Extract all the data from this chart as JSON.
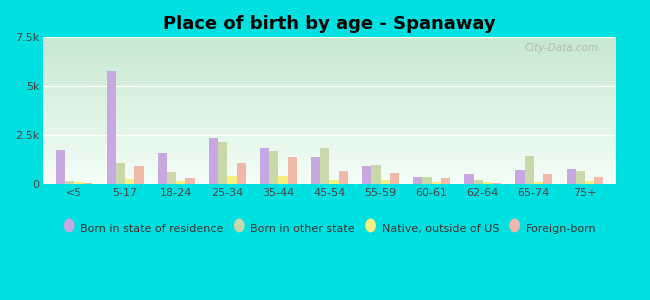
{
  "title": "Place of birth by age - Spanaway",
  "categories": [
    "<5",
    "5-17",
    "18-24",
    "25-34",
    "35-44",
    "45-54",
    "55-59",
    "60-61",
    "62-64",
    "65-74",
    "75+"
  ],
  "series": {
    "Born in state of residence": [
      1700,
      5750,
      1550,
      2350,
      1800,
      1350,
      900,
      350,
      500,
      700,
      750
    ],
    "Born in other state": [
      150,
      1050,
      600,
      2150,
      1650,
      1850,
      950,
      350,
      200,
      1400,
      650
    ],
    "Native, outside of US": [
      80,
      250,
      120,
      380,
      380,
      200,
      200,
      80,
      100,
      80,
      150
    ],
    "Foreign-born": [
      40,
      900,
      300,
      1050,
      1350,
      650,
      550,
      280,
      40,
      480,
      320
    ]
  },
  "colors": {
    "Born in state of residence": "#c8a8e0",
    "Born in other state": "#c8d8a8",
    "Native, outside of US": "#f5ef80",
    "Foreign-born": "#f0b8a8"
  },
  "ylim": [
    0,
    7500
  ],
  "yticks": [
    0,
    2500,
    5000,
    7500
  ],
  "ytick_labels": [
    "0",
    "2.5k",
    "5k",
    "7.5k"
  ],
  "outer_bg": "#00e0e0",
  "plot_bg_top": "#c8e8d0",
  "plot_bg_bottom": "#f4fef8",
  "bar_width": 0.18,
  "legend_fontsize": 8,
  "title_fontsize": 13
}
